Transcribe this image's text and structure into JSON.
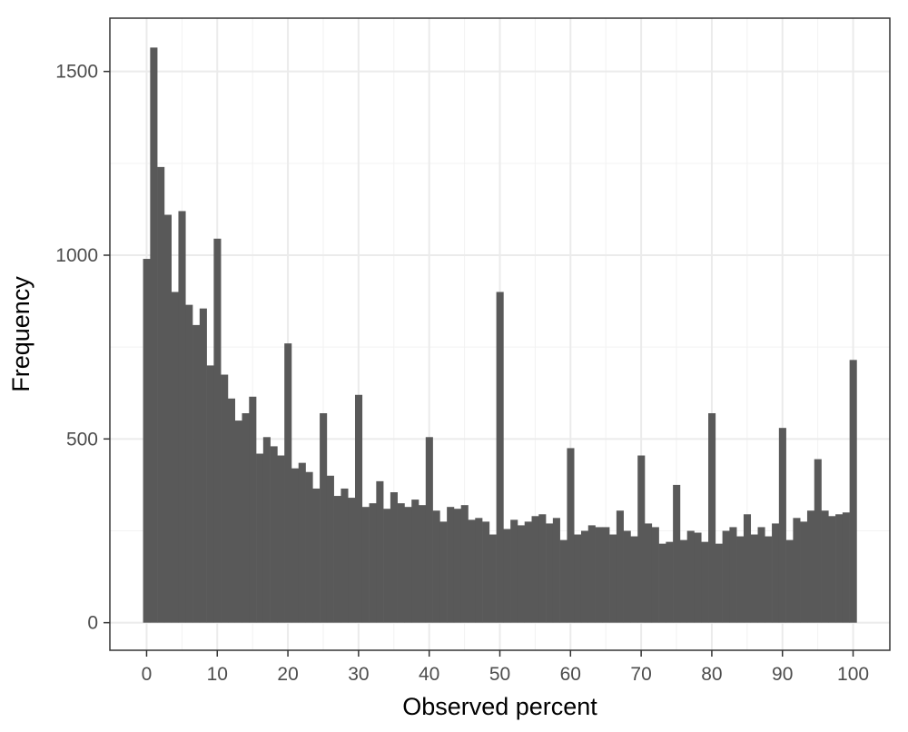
{
  "chart_data": {
    "type": "bar",
    "subtype": "histogram",
    "xlabel": "Observed percent",
    "ylabel": "Frequency",
    "x_ticks": [
      "0",
      "10",
      "20",
      "30",
      "40",
      "50",
      "60",
      "70",
      "80",
      "90",
      "100"
    ],
    "y_ticks": [
      "0",
      "500",
      "1000",
      "1500"
    ],
    "xlim": [
      -5.2,
      105.2
    ],
    "ylim": [
      -75,
      1645
    ],
    "bin_width": 1,
    "bins": [
      0,
      1,
      2,
      3,
      4,
      5,
      6,
      7,
      8,
      9,
      10,
      11,
      12,
      13,
      14,
      15,
      16,
      17,
      18,
      19,
      20,
      21,
      22,
      23,
      24,
      25,
      26,
      27,
      28,
      29,
      30,
      31,
      32,
      33,
      34,
      35,
      36,
      37,
      38,
      39,
      40,
      41,
      42,
      43,
      44,
      45,
      46,
      47,
      48,
      49,
      50,
      51,
      52,
      53,
      54,
      55,
      56,
      57,
      58,
      59,
      60,
      61,
      62,
      63,
      64,
      65,
      66,
      67,
      68,
      69,
      70,
      71,
      72,
      73,
      74,
      75,
      76,
      77,
      78,
      79,
      80,
      81,
      82,
      83,
      84,
      85,
      86,
      87,
      88,
      89,
      90,
      91,
      92,
      93,
      94,
      95,
      96,
      97,
      98,
      99,
      100
    ],
    "values": [
      990,
      1565,
      1240,
      1110,
      900,
      1120,
      865,
      810,
      855,
      700,
      1045,
      675,
      610,
      550,
      570,
      615,
      460,
      505,
      480,
      455,
      760,
      420,
      435,
      410,
      365,
      570,
      400,
      345,
      365,
      340,
      620,
      315,
      325,
      385,
      310,
      355,
      325,
      315,
      335,
      320,
      505,
      305,
      275,
      315,
      310,
      320,
      280,
      285,
      275,
      240,
      900,
      255,
      280,
      265,
      275,
      290,
      295,
      270,
      285,
      225,
      475,
      240,
      250,
      265,
      260,
      260,
      240,
      305,
      250,
      235,
      455,
      270,
      260,
      215,
      220,
      375,
      225,
      250,
      245,
      220,
      570,
      215,
      250,
      260,
      235,
      295,
      240,
      260,
      235,
      270,
      530,
      225,
      285,
      275,
      305,
      445,
      305,
      290,
      295,
      300,
      715
    ],
    "grid": true,
    "theme": "bw",
    "bar_color": "#595959"
  }
}
